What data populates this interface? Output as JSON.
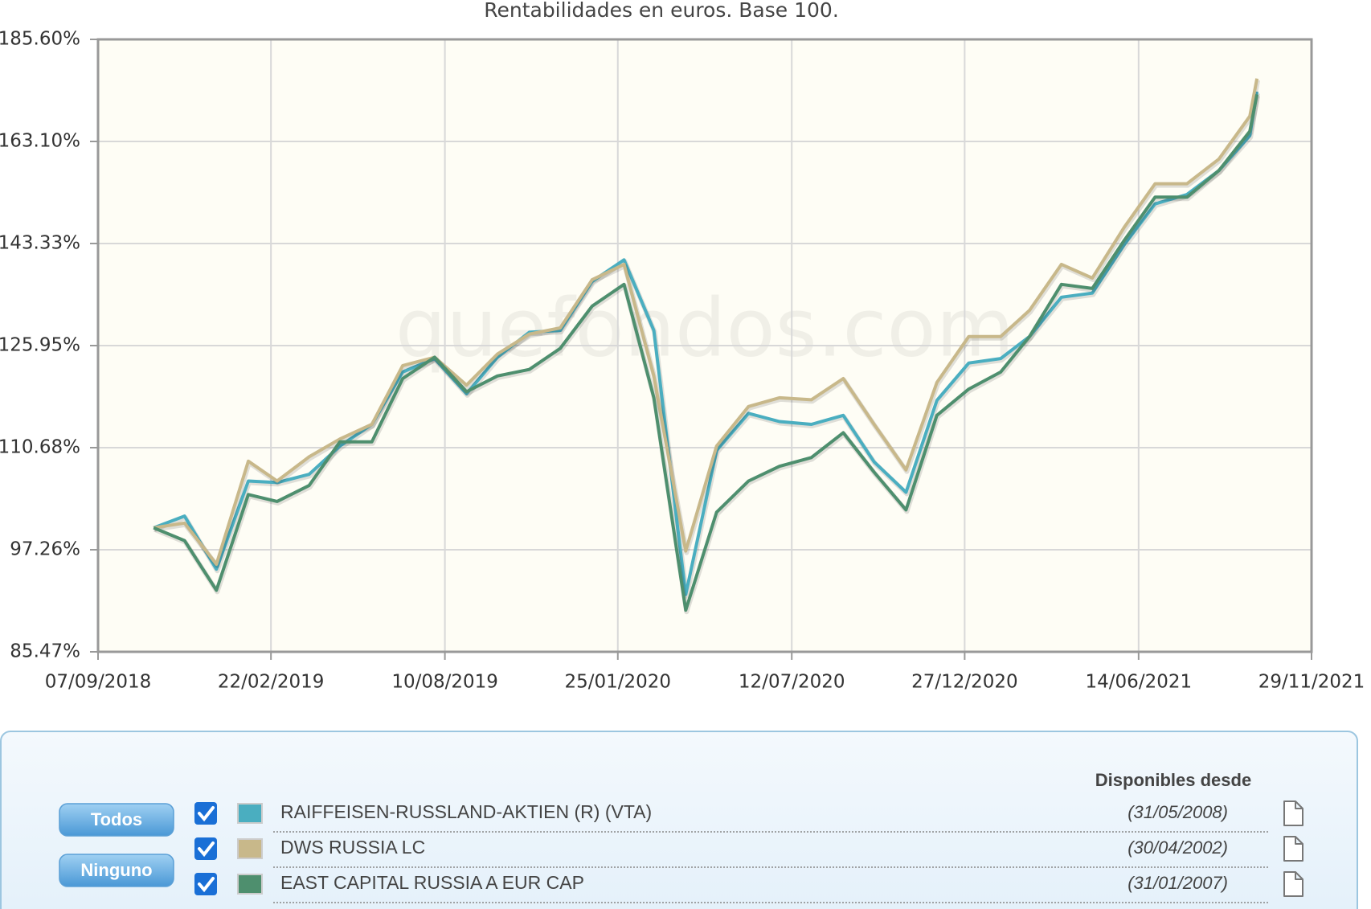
{
  "chart_data": {
    "type": "line",
    "title": "Rentabilidades en euros. Base 100.",
    "watermark": "quefondos.com",
    "log_scale": true,
    "grid": true,
    "x": [
      "2018-10-31",
      "2018-11-30",
      "2018-12-31",
      "2019-01-31",
      "2019-02-28",
      "2019-03-31",
      "2019-04-30",
      "2019-05-31",
      "2019-06-30",
      "2019-07-31",
      "2019-08-31",
      "2019-09-30",
      "2019-10-31",
      "2019-11-30",
      "2019-12-31",
      "2020-01-31",
      "2020-02-29",
      "2020-03-31",
      "2020-04-30",
      "2020-05-31",
      "2020-06-30",
      "2020-07-31",
      "2020-08-31",
      "2020-09-30",
      "2020-10-31",
      "2020-11-30",
      "2020-12-31",
      "2021-01-31",
      "2021-02-28",
      "2021-03-31",
      "2021-04-30",
      "2021-05-31",
      "2021-06-30",
      "2021-07-31",
      "2021-08-31",
      "2021-09-30",
      "2021-10-07"
    ],
    "xlim": [
      "2018-09-07",
      "2021-11-29"
    ],
    "xticks": [
      {
        "value": "2018-09-07",
        "label": "07/09/2018"
      },
      {
        "value": "2019-02-22",
        "label": "22/02/2019"
      },
      {
        "value": "2019-08-10",
        "label": "10/08/2019"
      },
      {
        "value": "2020-01-25",
        "label": "25/01/2020"
      },
      {
        "value": "2020-07-12",
        "label": "12/07/2020"
      },
      {
        "value": "2020-12-27",
        "label": "27/12/2020"
      },
      {
        "value": "2021-06-14",
        "label": "14/06/2021"
      },
      {
        "value": "2021-11-29",
        "label": "29/11/2021"
      }
    ],
    "ylim": [
      85.47,
      185.6
    ],
    "yticks": [
      {
        "value": 85.47,
        "label": "85.47%"
      },
      {
        "value": 97.26,
        "label": "97.26%"
      },
      {
        "value": 110.68,
        "label": "110.68%"
      },
      {
        "value": 125.95,
        "label": "125.95%"
      },
      {
        "value": 143.33,
        "label": "143.33%"
      },
      {
        "value": 163.1,
        "label": "163.10%"
      },
      {
        "value": 185.6,
        "label": "185.60%"
      }
    ],
    "series": [
      {
        "name": "RAIFFEISEN-RUSSLAND-AKTIEN (R) (VTA)",
        "color": "#4aaec0",
        "since": "(31/05/2008)",
        "values": [
          100.0,
          101.5,
          94.9,
          106.1,
          105.9,
          107.0,
          110.9,
          114.0,
          121.8,
          123.9,
          118.5,
          124.1,
          128.1,
          128.4,
          136.6,
          140.4,
          128.4,
          91.9,
          110.3,
          115.6,
          114.4,
          114.0,
          115.3,
          108.7,
          104.6,
          117.5,
          123.2,
          123.9,
          127.4,
          133.9,
          134.6,
          143.1,
          150.7,
          152.5,
          157.2,
          164.3,
          173.7
        ]
      },
      {
        "name": "DWS RUSSIA LC",
        "color": "#c8b88a",
        "since": "(30/04/2002)",
        "values": [
          100.0,
          100.6,
          95.5,
          108.8,
          106.1,
          109.4,
          111.9,
          114.0,
          122.8,
          124.1,
          119.8,
          124.6,
          127.8,
          128.8,
          136.9,
          139.6,
          121.2,
          97.1,
          110.9,
          116.6,
          117.9,
          117.6,
          120.8,
          114.0,
          107.6,
          120.2,
          127.4,
          127.4,
          131.7,
          139.6,
          137.2,
          146.3,
          154.6,
          154.6,
          159.5,
          168.4,
          176.6
        ]
      },
      {
        "name": "EAST CAPITAL RUSSIA A EUR CAP",
        "color": "#4e8f6e",
        "since": "(31/01/2007)",
        "values": [
          100.0,
          98.4,
          92.4,
          104.3,
          103.4,
          105.5,
          111.5,
          111.5,
          120.8,
          124.1,
          118.8,
          121.2,
          122.2,
          125.5,
          132.4,
          136.1,
          117.9,
          90.1,
          102.0,
          106.1,
          108.1,
          109.3,
          112.8,
          107.3,
          102.3,
          115.3,
          119.2,
          121.8,
          127.4,
          136.1,
          135.4,
          143.9,
          152.0,
          152.0,
          157.2,
          165.2,
          173.1
        ]
      }
    ]
  },
  "legend": {
    "header": "Disponibles desde",
    "buttons": [
      "Todos",
      "Ninguno"
    ]
  }
}
